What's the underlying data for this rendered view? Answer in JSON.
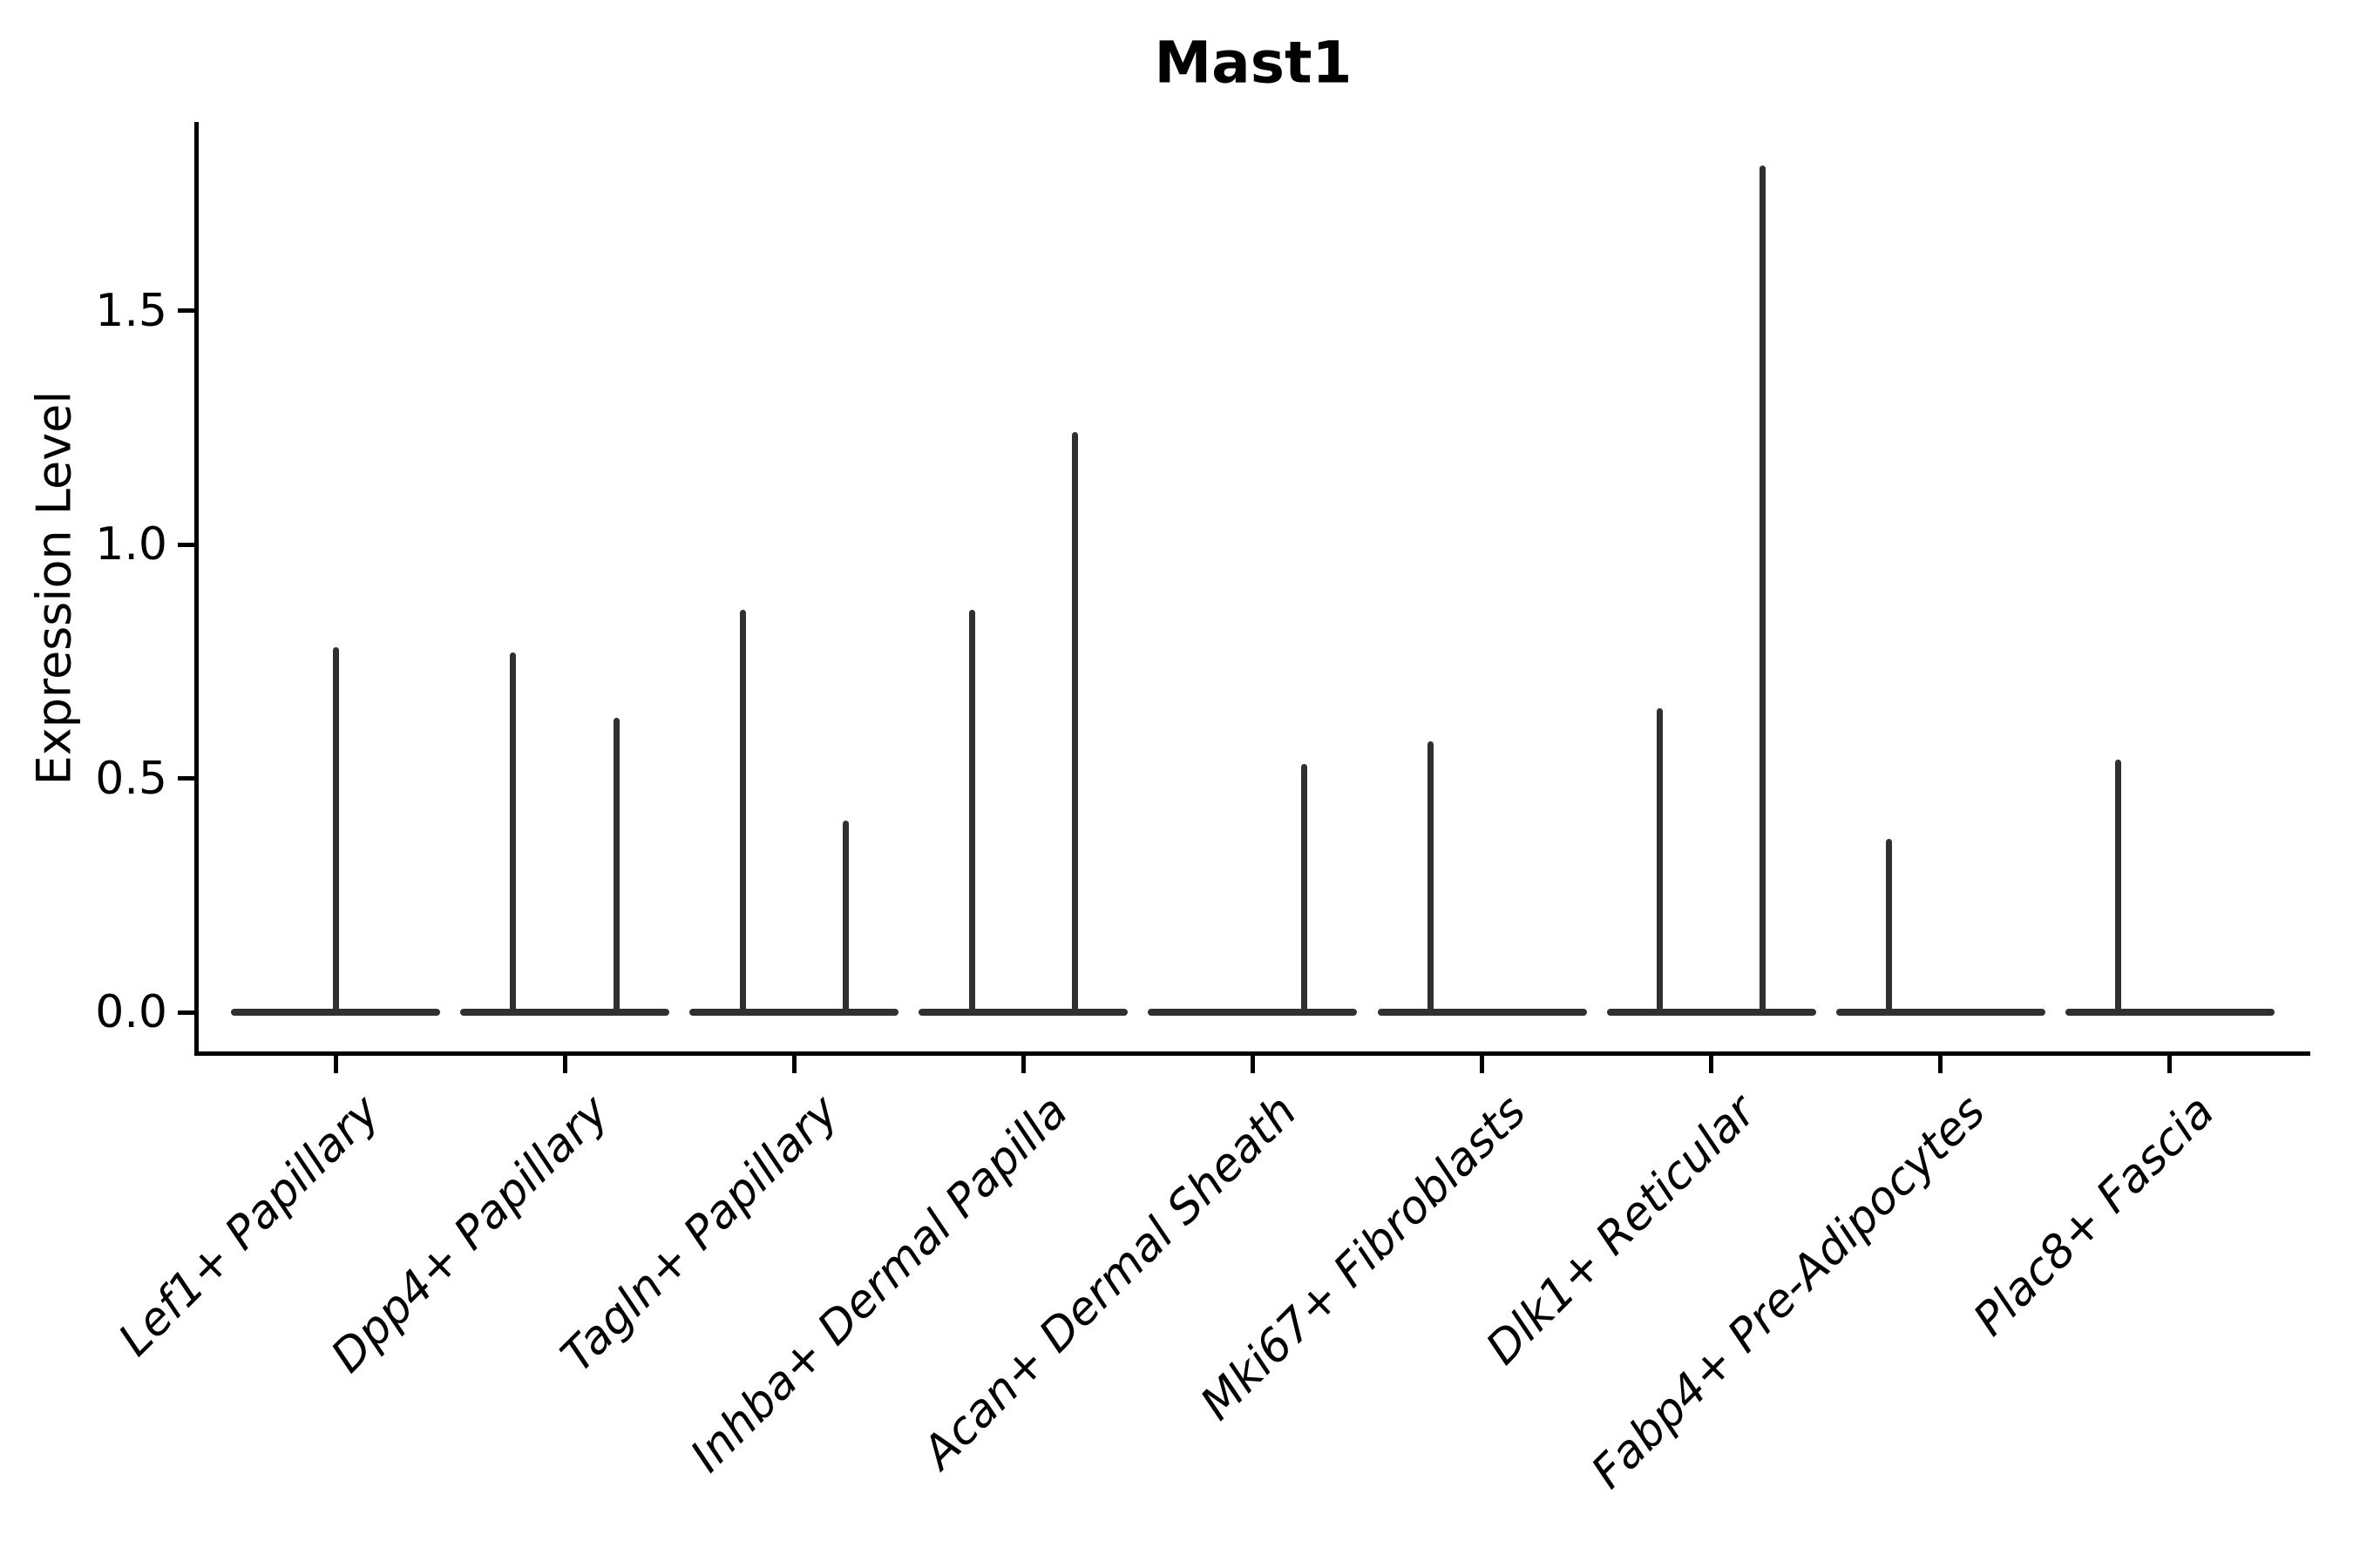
{
  "title": "Mast1",
  "y_axis": {
    "label": "Expression Level",
    "ticks": [
      {
        "label": "0.0",
        "value": 0.0
      },
      {
        "label": "0.5",
        "value": 0.5
      },
      {
        "label": "1.0",
        "value": 1.0
      },
      {
        "label": "1.5",
        "value": 1.5
      }
    ]
  },
  "colors": {
    "violin": "#303030",
    "axis": "#000000",
    "text": "#000000",
    "background": "#ffffff"
  },
  "chart_data": {
    "type": "violin",
    "title": "Mast1",
    "xlabel": "",
    "ylabel": "Expression Level",
    "ylim": [
      0,
      1.9
    ],
    "yticks": [
      0.0,
      0.5,
      1.0,
      1.5
    ],
    "grid": false,
    "legend": "none",
    "description": "Violin plot of Mast1 expression per fibroblast cluster; expression is near zero for most cells, so each violin collapses to a flat baseline at 0 with thin spikes reaching the maximum expression of the few positive cells.",
    "baseline_value": 0.0,
    "categories": [
      "Lef1+ Papillary",
      "Dpp4+ Papillary",
      "Tagln+ Papillary",
      "Inhba+ Dermal Papilla",
      "Acan+ Dermal Sheath",
      "Mki67+ Fibroblasts",
      "Dlk1+ Reticular",
      "Fabp4+ Pre-Adipocytes",
      "Plac8+ Fascia"
    ],
    "violins": [
      {
        "category": "Lef1+ Papillary",
        "spikes": [
          {
            "offset": "center",
            "max": 0.78
          }
        ]
      },
      {
        "category": "Dpp4+ Papillary",
        "spikes": [
          {
            "offset": "left",
            "max": 0.77
          },
          {
            "offset": "right",
            "max": 0.63
          }
        ]
      },
      {
        "category": "Tagln+ Papillary",
        "spikes": [
          {
            "offset": "left",
            "max": 0.86
          },
          {
            "offset": "right",
            "max": 0.41
          }
        ]
      },
      {
        "category": "Inhba+ Dermal Papilla",
        "spikes": [
          {
            "offset": "left",
            "max": 0.86
          },
          {
            "offset": "right",
            "max": 1.24
          }
        ]
      },
      {
        "category": "Acan+ Dermal Sheath",
        "spikes": [
          {
            "offset": "right",
            "max": 0.53
          }
        ]
      },
      {
        "category": "Mki67+ Fibroblasts",
        "spikes": [
          {
            "offset": "left",
            "max": 0.58
          }
        ]
      },
      {
        "category": "Dlk1+ Reticular",
        "spikes": [
          {
            "offset": "left",
            "max": 0.65
          },
          {
            "offset": "right",
            "max": 1.81
          }
        ]
      },
      {
        "category": "Fabp4+ Pre-Adipocytes",
        "spikes": [
          {
            "offset": "left",
            "max": 0.37
          }
        ]
      },
      {
        "category": "Plac8+ Fascia",
        "spikes": [
          {
            "offset": "left",
            "max": 0.54
          }
        ]
      }
    ]
  }
}
